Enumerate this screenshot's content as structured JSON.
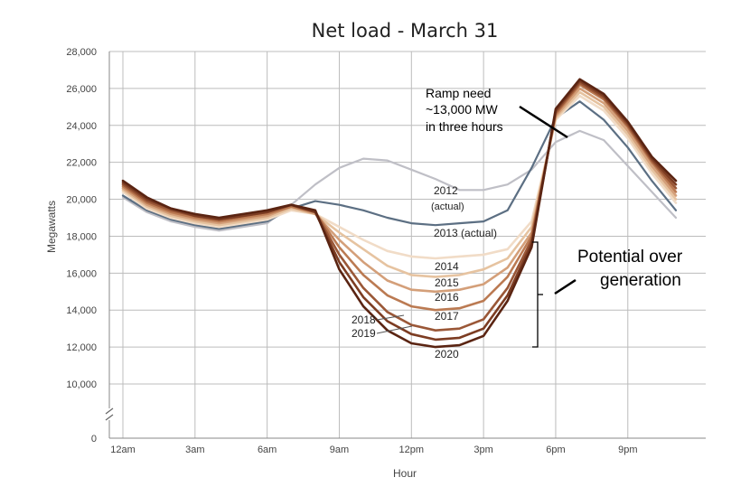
{
  "chart_data": {
    "type": "line",
    "title": "Net load - March 31",
    "xlabel": "Hour",
    "ylabel": "Megawatts",
    "x": [
      0,
      1,
      2,
      3,
      4,
      5,
      6,
      7,
      8,
      9,
      10,
      11,
      12,
      13,
      14,
      15,
      16,
      17,
      18,
      19,
      20,
      21,
      22,
      23
    ],
    "x_ticks": [
      {
        "x": 0,
        "label": "12am"
      },
      {
        "x": 3,
        "label": "3am"
      },
      {
        "x": 6,
        "label": "6am"
      },
      {
        "x": 9,
        "label": "9am"
      },
      {
        "x": 12,
        "label": "12pm"
      },
      {
        "x": 15,
        "label": "3pm"
      },
      {
        "x": 18,
        "label": "6pm"
      },
      {
        "x": 21,
        "label": "9pm"
      }
    ],
    "y_ticks": [
      {
        "value": 0,
        "label": "0"
      },
      {
        "value": 10000,
        "label": "10,000"
      },
      {
        "value": 12000,
        "label": "12,000"
      },
      {
        "value": 14000,
        "label": "14,000"
      },
      {
        "value": 16000,
        "label": "16,000"
      },
      {
        "value": 18000,
        "label": "18,000"
      },
      {
        "value": 20000,
        "label": "20,000"
      },
      {
        "value": 22000,
        "label": "22,000"
      },
      {
        "value": 24000,
        "label": "24,000"
      },
      {
        "value": 26000,
        "label": "26,000"
      },
      {
        "value": 28000,
        "label": "28,000"
      }
    ],
    "ylim": [
      0,
      28000
    ],
    "axis_break": "between 0 and 10,000",
    "grid": true,
    "series": [
      {
        "name": "2012",
        "sublabel": "(actual)",
        "color": "#bfbfc6",
        "values": [
          20100,
          19300,
          18800,
          18500,
          18300,
          18500,
          18700,
          19700,
          20800,
          21700,
          22200,
          22100,
          21600,
          21100,
          20500,
          20500,
          20800,
          21600,
          23100,
          23700,
          23200,
          21800,
          20400,
          19000
        ]
      },
      {
        "name": "2013",
        "sublabel": "(actual)",
        "color": "#5c6f83",
        "values": [
          20200,
          19400,
          18900,
          18600,
          18400,
          18600,
          18800,
          19500,
          19900,
          19700,
          19400,
          19000,
          18700,
          18600,
          18700,
          18800,
          19400,
          21700,
          24400,
          25300,
          24300,
          22800,
          21000,
          19400
        ]
      },
      {
        "name": "2014",
        "color": "#f1dcc7",
        "values": [
          20400,
          19500,
          19000,
          18700,
          18500,
          18700,
          18900,
          19400,
          19200,
          18500,
          17800,
          17200,
          16900,
          16800,
          16900,
          17000,
          17300,
          18800,
          24300,
          25600,
          24800,
          23300,
          21400,
          19800
        ]
      },
      {
        "name": "2015",
        "color": "#e6c3a0",
        "values": [
          20500,
          19600,
          19100,
          18800,
          18600,
          18800,
          19000,
          19500,
          19200,
          18200,
          17300,
          16400,
          15900,
          15800,
          15900,
          16200,
          16800,
          18500,
          24400,
          25800,
          25000,
          23500,
          21600,
          20000
        ]
      },
      {
        "name": "2016",
        "color": "#d49f79",
        "values": [
          20600,
          19700,
          19200,
          18900,
          18700,
          18900,
          19100,
          19600,
          19200,
          17800,
          16600,
          15600,
          15100,
          15000,
          15100,
          15400,
          16300,
          18200,
          24500,
          26000,
          25200,
          23700,
          21800,
          20200
        ]
      },
      {
        "name": "2017",
        "color": "#bb7a52",
        "values": [
          20700,
          19800,
          19300,
          19000,
          18800,
          19000,
          19200,
          19600,
          19300,
          17400,
          15900,
          14800,
          14200,
          14000,
          14100,
          14500,
          15800,
          18000,
          24600,
          26200,
          25400,
          23900,
          22000,
          20400
        ]
      },
      {
        "name": "2018",
        "color": "#9a5737",
        "values": [
          20800,
          19900,
          19400,
          19100,
          18900,
          19100,
          19300,
          19700,
          19300,
          17000,
          15200,
          13900,
          13200,
          12900,
          13000,
          13500,
          15200,
          17800,
          24700,
          26300,
          25500,
          24000,
          22100,
          20600
        ]
      },
      {
        "name": "2019",
        "color": "#7c3c22",
        "values": [
          20900,
          20000,
          19500,
          19100,
          18900,
          19100,
          19300,
          19700,
          19300,
          16600,
          14700,
          13400,
          12700,
          12400,
          12500,
          13000,
          14800,
          17600,
          24800,
          26400,
          25600,
          24100,
          22200,
          20800
        ]
      },
      {
        "name": "2020",
        "color": "#5a2412",
        "values": [
          21000,
          20100,
          19500,
          19200,
          19000,
          19200,
          19400,
          19700,
          19400,
          16200,
          14200,
          12900,
          12200,
          12000,
          12100,
          12600,
          14500,
          17400,
          24900,
          26500,
          25700,
          24200,
          22300,
          21000
        ]
      }
    ],
    "labels": {
      "s2012": "2012",
      "s2012_sub": "(actual)",
      "s2013": "2013 (actual)",
      "s2014": "2014",
      "s2015": "2015",
      "s2016": "2016",
      "s2017": "2017",
      "s2018": "2018",
      "s2019": "2019",
      "s2020": "2020"
    },
    "annotations": {
      "ramp_line1": "Ramp need",
      "ramp_line2": "~13,000 MW",
      "ramp_line3": "in three hours",
      "overgen_line1": "Potential over",
      "overgen_line2": "generation"
    }
  }
}
